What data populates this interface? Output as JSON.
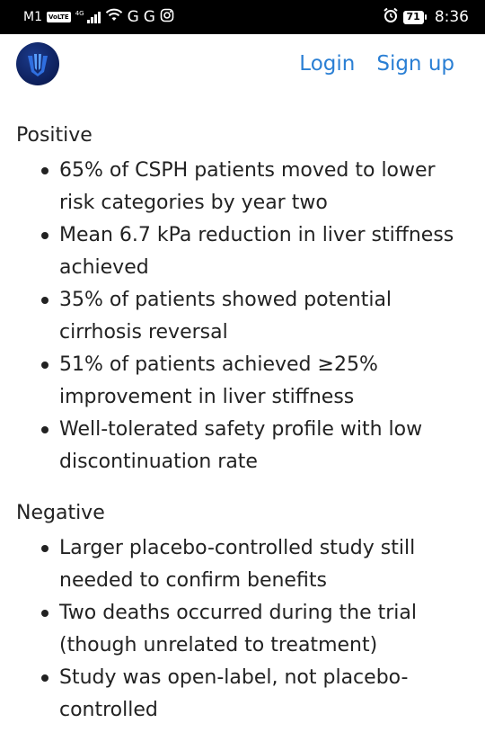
{
  "status_bar": {
    "carrier": "M1",
    "volte": "VoLTE",
    "network": "4G",
    "app_letters": [
      "G",
      "G"
    ],
    "battery": "71",
    "time": "8:36"
  },
  "header": {
    "login": "Login",
    "signup": "Sign up"
  },
  "sections": [
    {
      "title": "Positive",
      "items": [
        "65% of CSPH patients moved to lower risk categories by year two",
        "Mean 6.7 kPa reduction in liver stiffness achieved",
        "35% of patients showed potential cirrhosis reversal",
        "51% of patients achieved ≥25% improvement in liver stiffness",
        "Well-tolerated safety profile with low discontinuation rate"
      ]
    },
    {
      "title": "Negative",
      "items": [
        "Larger placebo-controlled study still needed to confirm benefits",
        "Two deaths occurred during the trial (though unrelated to treatment)",
        "Study was open-label, not placebo-controlled"
      ]
    }
  ]
}
